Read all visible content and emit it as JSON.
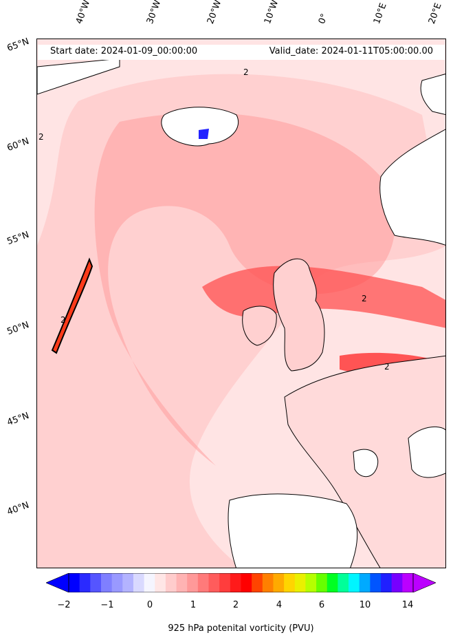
{
  "map": {
    "start_date": "Start date: 2024-01-09_00:00:00",
    "valid_date": "Valid_date: 2024-01-11T05:00:00.00",
    "longitude_labels": [
      "40°W",
      "30°W",
      "20°W",
      "10°W",
      "0°",
      "10°E",
      "20°E"
    ],
    "latitude_labels": [
      "65°N",
      "60°N",
      "55°N",
      "50°N",
      "45°N",
      "40°N"
    ],
    "contour_label": "2"
  },
  "colorbar": {
    "ticks": [
      "−2",
      "−1",
      "0",
      "1",
      "2",
      "4",
      "6",
      "10",
      "14"
    ],
    "label": "925 hPa potenital vorticity (PVU)",
    "colors": [
      "#0000ff",
      "#2a2aff",
      "#5555ff",
      "#7f7fff",
      "#9999ff",
      "#b3b3ff",
      "#d9d9ff",
      "#f5f5ff",
      "#ffe6e6",
      "#ffcccc",
      "#ffb3b3",
      "#ff9999",
      "#ff7a7a",
      "#ff5c5c",
      "#ff3d3d",
      "#ff1a1a",
      "#ff0000",
      "#ff4400",
      "#ff8000",
      "#ffaa00",
      "#ffd500",
      "#eaf000",
      "#b5ff00",
      "#66ff00",
      "#00ff22",
      "#00ff99",
      "#00f5ff",
      "#00aaff",
      "#0055ff",
      "#2020ff",
      "#7700ff",
      "#bb00ff"
    ]
  }
}
